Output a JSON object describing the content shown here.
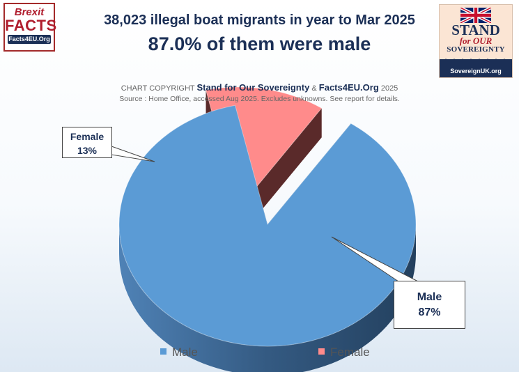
{
  "brand_left": {
    "line1": "Brexit",
    "line2": "FACTS",
    "line3": "Facts4EU.Org"
  },
  "brand_right": {
    "line1": "STAND",
    "line2": "for OUR",
    "line3": "SOVEREIGNTY",
    "line4": "SovereignUK.org"
  },
  "title": "38,023 illegal boat migrants in year to Mar 2025",
  "subtitle": "87.0% of them were male",
  "copyright": {
    "prefix": "CHART COPYRIGHT",
    "org1": "Stand for Our Sovereignty",
    "amp": "&",
    "org2": "Facts4EU.Org",
    "year": "2025"
  },
  "source": "Source : Home Office, accessed Aug 2025.  Excludes unknowns. See report for details.",
  "colors": {
    "male": "#5b9bd5",
    "female": "#ff8b8b",
    "title": "#1b2f56"
  },
  "chart_data": {
    "type": "pie",
    "style": "3d-exploded",
    "slices": [
      {
        "label": "Male",
        "value": 87,
        "display": "87%",
        "color": "#5b9bd5"
      },
      {
        "label": "Female",
        "value": 13,
        "display": "13%",
        "color": "#ff8b8b"
      }
    ],
    "legend": [
      "Male",
      "Female"
    ],
    "legend_position": "bottom"
  }
}
